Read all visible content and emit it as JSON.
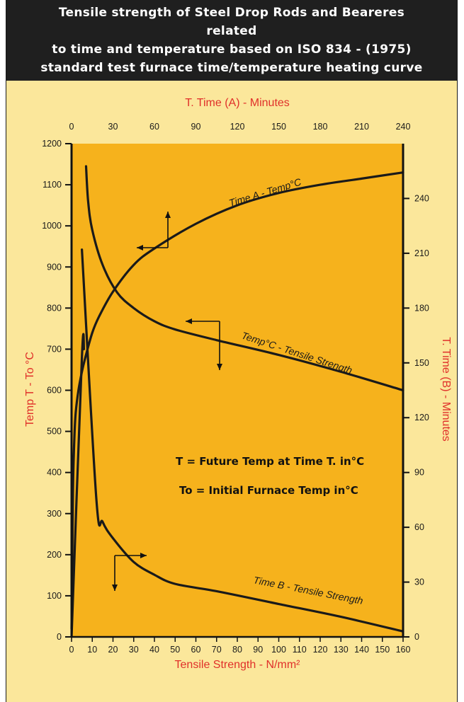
{
  "title_lines": [
    "Tensile strength of Steel Drop Rods and Beareres related",
    "to time and temperature based on ISO 834 - (1975)",
    "standard test furnace time/temperature heating curve"
  ],
  "colors": {
    "header_bg": "#1f1f1f",
    "page_bg": "#fbe79b",
    "plot_bg": "#f6b21c",
    "axis_label": "#e0302a",
    "curve": "#1a1a1a"
  },
  "chart_data": {
    "type": "line",
    "top_axis": {
      "label": "T. Time (A) - Minutes",
      "range": [
        0,
        240
      ],
      "ticks": [
        0,
        30,
        60,
        90,
        120,
        150,
        180,
        210,
        240
      ]
    },
    "left_axis": {
      "label": "Temp T - To °C",
      "range": [
        0,
        1200
      ],
      "ticks": [
        0,
        100,
        200,
        300,
        400,
        500,
        600,
        700,
        800,
        900,
        1000,
        1100,
        1200
      ]
    },
    "right_axis": {
      "label": "T. Time (B) - Minutes",
      "range": [
        0,
        270
      ],
      "ticks": [
        0,
        30,
        60,
        90,
        120,
        150,
        180,
        210,
        240
      ]
    },
    "bottom_axis": {
      "label": "Tensile Strength - N/mm²",
      "range": [
        0,
        160
      ],
      "ticks": [
        0,
        10,
        20,
        30,
        40,
        50,
        60,
        70,
        80,
        90,
        100,
        110,
        120,
        130,
        140,
        150,
        160
      ]
    },
    "series": [
      {
        "name": "Time A - Temp°C",
        "x_axis": "top",
        "y_axis": "left",
        "points": [
          [
            0,
            20
          ],
          [
            1,
            350
          ],
          [
            2,
            480
          ],
          [
            3,
            545
          ],
          [
            5,
            600
          ],
          [
            7.5,
            645
          ],
          [
            10,
            680
          ],
          [
            15,
            740
          ],
          [
            20,
            780
          ],
          [
            30,
            840
          ],
          [
            45,
            905
          ],
          [
            60,
            945
          ],
          [
            90,
            1005
          ],
          [
            120,
            1050
          ],
          [
            150,
            1080
          ],
          [
            180,
            1100
          ],
          [
            210,
            1115
          ],
          [
            240,
            1130
          ]
        ]
      },
      {
        "name": "Temp°C - Tensile Strength",
        "x_axis": "bottom",
        "y_axis": "left",
        "points": [
          [
            7,
            1145
          ],
          [
            8,
            1060
          ],
          [
            10,
            990
          ],
          [
            15,
            905
          ],
          [
            22,
            838
          ],
          [
            30,
            800
          ],
          [
            40,
            768
          ],
          [
            50,
            748
          ],
          [
            70,
            722
          ],
          [
            100,
            686
          ],
          [
            130,
            645
          ],
          [
            160,
            600
          ]
        ]
      },
      {
        "name": "Time B - Tensile Strength",
        "x_axis": "bottom",
        "y_axis": "right",
        "points": [
          [
            5,
            212
          ],
          [
            12,
            75
          ],
          [
            15,
            63
          ],
          [
            20,
            54
          ],
          [
            30,
            41
          ],
          [
            40,
            34
          ],
          [
            50,
            29
          ],
          [
            70,
            25
          ],
          [
            100,
            18
          ],
          [
            130,
            11
          ],
          [
            160,
            3
          ]
        ]
      },
      {
        "name": "",
        "x_axis": "bottom",
        "y_axis": "left",
        "points": [
          [
            0,
            0
          ],
          [
            5,
            680
          ],
          [
            6,
            700
          ]
        ]
      }
    ],
    "annotations": [
      "T = Future Temp at Time T. in°C",
      "To = Initial Furnace Temp in°C"
    ],
    "grid": false
  }
}
